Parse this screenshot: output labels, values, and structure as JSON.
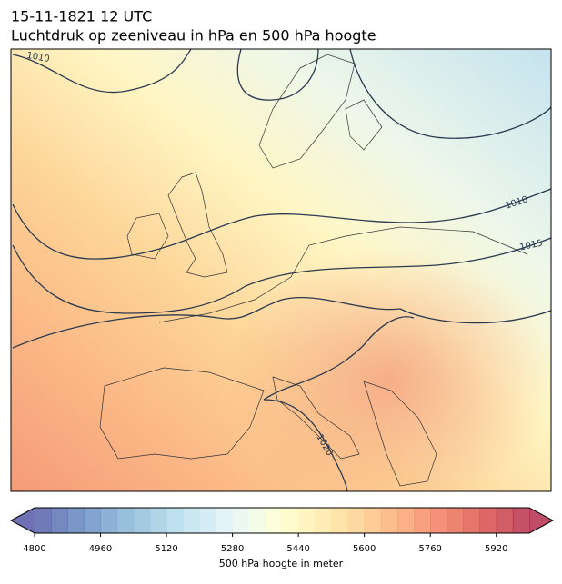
{
  "title": {
    "line1": "15-11-1821 12 UTC",
    "line2": "Luchtdruk op zeeniveau in hPa en 500 hPa hoogte"
  },
  "map": {
    "contour_labels": [
      1010,
      1010,
      1015,
      1020
    ]
  },
  "colorbar": {
    "label": "500 hPa hoogte in meter",
    "range": [
      4800,
      6000
    ],
    "step": 40,
    "ticks": [
      4800,
      4960,
      5120,
      5280,
      5440,
      5600,
      5760,
      5920
    ],
    "colormap": [
      "#313695",
      "#4575b4",
      "#74add1",
      "#abd9e9",
      "#e0f3f8",
      "#ffffbf",
      "#fee090",
      "#fdae61",
      "#f46d43",
      "#d73027",
      "#a50026"
    ]
  }
}
